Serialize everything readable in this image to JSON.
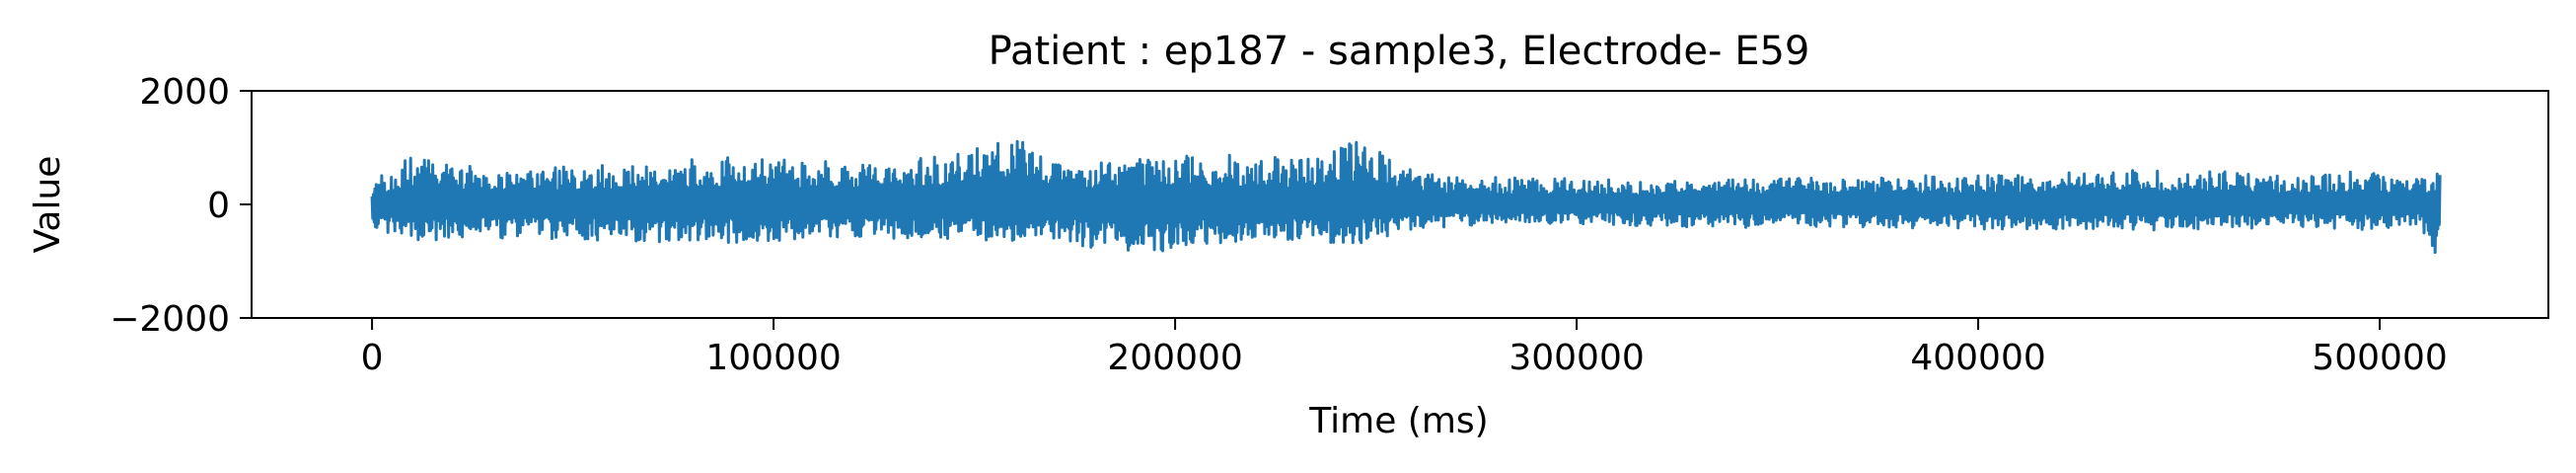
{
  "chart_data": {
    "type": "line",
    "title": "Patient : ep187 - sample3, Electrode- E59",
    "xlabel": "Time (ms)",
    "ylabel": "Value",
    "xlim": [
      -30000,
      542000
    ],
    "ylim": [
      -2000,
      2000
    ],
    "x_ticks": [
      0,
      100000,
      200000,
      300000,
      400000,
      500000
    ],
    "x_tick_labels": [
      "0",
      "100000",
      "200000",
      "300000",
      "400000",
      "500000"
    ],
    "y_ticks": [
      2000,
      0,
      -2000
    ],
    "y_tick_labels": [
      "2000",
      "0",
      "−2000"
    ],
    "grid": false,
    "series": [
      {
        "color": "#1f77b4",
        "x_range": [
          0,
          515000
        ],
        "envelope": {
          "x": [
            0,
            10000,
            30000,
            60000,
            80000,
            100000,
            130000,
            160000,
            170000,
            190000,
            210000,
            230000,
            245000,
            250000,
            260000,
            270000,
            300000,
            330000,
            380000,
            420000,
            450000,
            480000,
            495000,
            510000,
            515000
          ],
          "upper": [
            400,
            850,
            600,
            700,
            850,
            800,
            700,
            1200,
            700,
            850,
            900,
            800,
            1100,
            1050,
            550,
            500,
            450,
            420,
            500,
            550,
            650,
            500,
            600,
            500,
            550
          ],
          "lower": [
            -400,
            -650,
            -600,
            -650,
            -700,
            -650,
            -600,
            -650,
            -650,
            -900,
            -700,
            -650,
            -700,
            -600,
            -450,
            -380,
            -350,
            -400,
            -420,
            -450,
            -450,
            -400,
            -450,
            -420,
            -1000
          ]
        }
      }
    ]
  }
}
